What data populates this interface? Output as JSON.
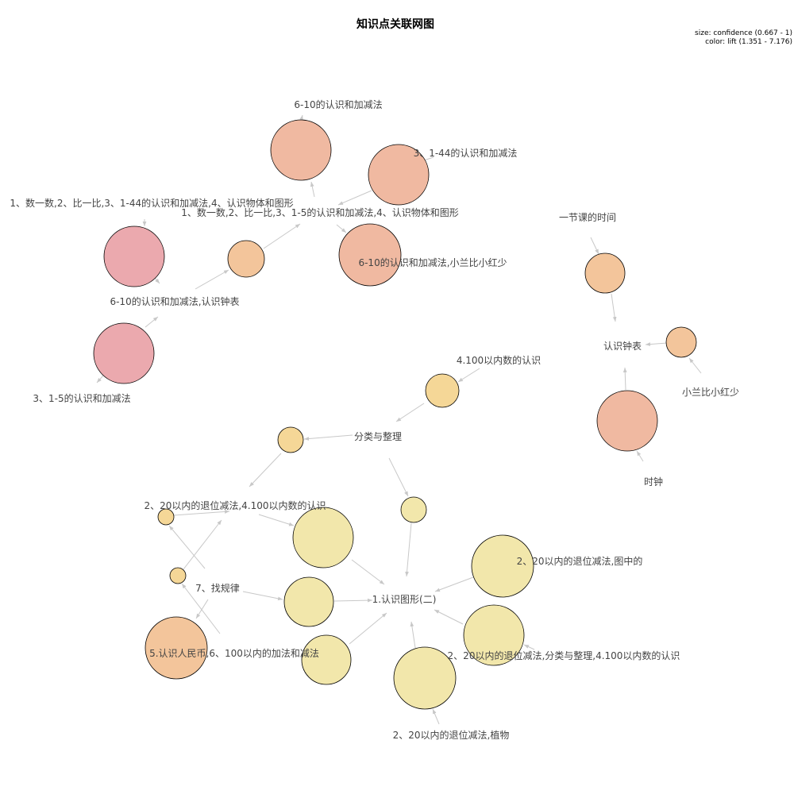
{
  "title": "知识点关联网图",
  "legend": {
    "size": "size: confidence (0.667 - 1)",
    "color": "color: lift (1.351 - 7.176)"
  },
  "labels": [
    "6-10的认识和加减法",
    "3、1-44的认识和加减法",
    "1、数一数,2、比一比,3、1-44的认识和加减法,4、认识物体和图形",
    "1、数一数,2、比一比,3、1-5的认识和加减法,4、认识物体和图形",
    "6-10的认识和加减法,小兰比小红少",
    "6-10的认识和加减法,认识钟表",
    "3、1-5的认识和加减法",
    "一节课的时间",
    "认识钟表",
    "小兰比小红少",
    "时钟",
    "4.100以内数的认识",
    "分类与整理",
    "2、20以内的退位减法,4.100以内数的认识",
    "7、找规律",
    "1.认识图形(二)",
    "2、20以内的退位减法,图中的",
    "2、20以内的退位减法,分类与整理,4.100以内数的认识",
    "5.认识人民币,6、100以内的加法和减法",
    "2、20以内的退位减法,植物"
  ],
  "colors": {
    "lift_high": "#EBA9AE",
    "lift_upper": "#F0B9A1",
    "lift_mid": "#F3C59B",
    "lift_lower": "#F5D797",
    "lift_low": "#F2E7AB"
  }
}
